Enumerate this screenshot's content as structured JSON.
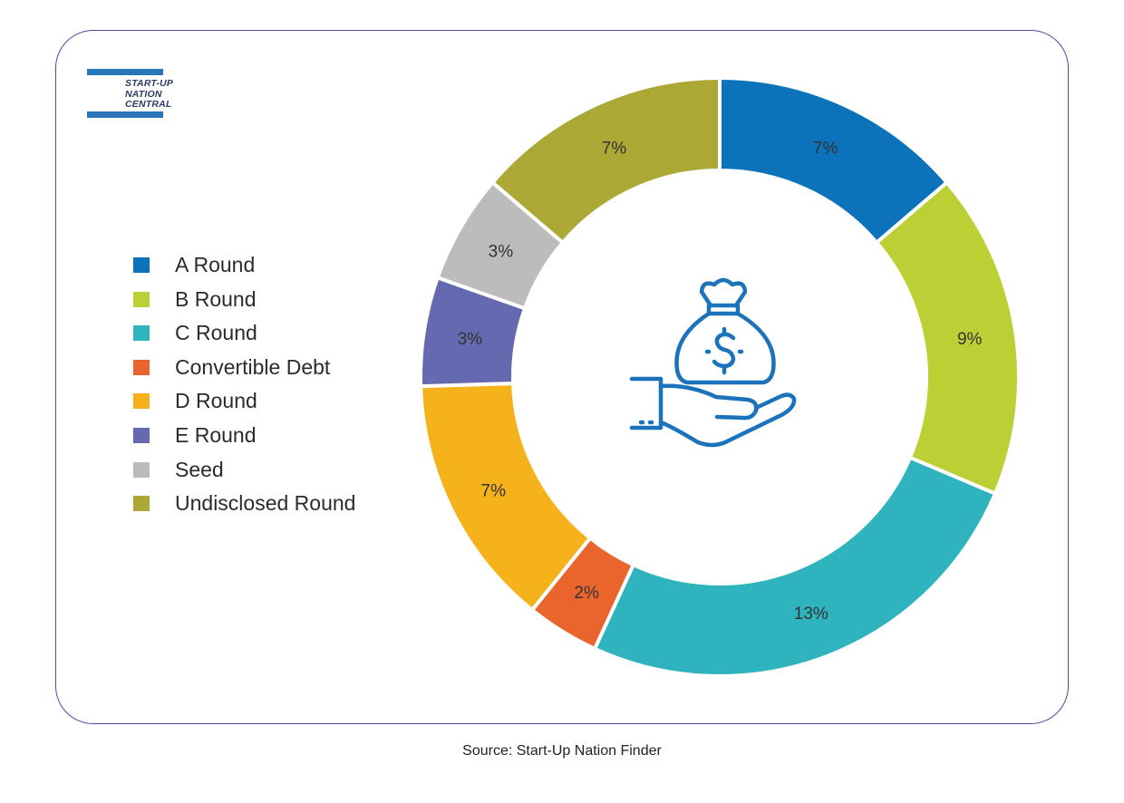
{
  "logo": {
    "line1": "START-UP",
    "line2": "NATION",
    "line3": "CENTRAL"
  },
  "chart_data": {
    "type": "pie",
    "style": "donut",
    "categories": [
      "A Round",
      "B Round",
      "C Round",
      "Convertible Debt",
      "D Round",
      "E Round",
      "Seed",
      "Undisclosed Round"
    ],
    "values": [
      7,
      9,
      13,
      2,
      7,
      3,
      3,
      7
    ],
    "labels": [
      "7%",
      "9%",
      "13%",
      "2%",
      "7%",
      "3%",
      "3%",
      "7%"
    ],
    "colors": [
      "#0c72b9",
      "#bccf34",
      "#2fb3be",
      "#e9652d",
      "#f5b21a",
      "#6569b0",
      "#bcbcbc",
      "#aca836"
    ],
    "legend_position": "left",
    "center_icon": "money-bag-hand-icon"
  },
  "source": "Source: Start-Up Nation Finder"
}
